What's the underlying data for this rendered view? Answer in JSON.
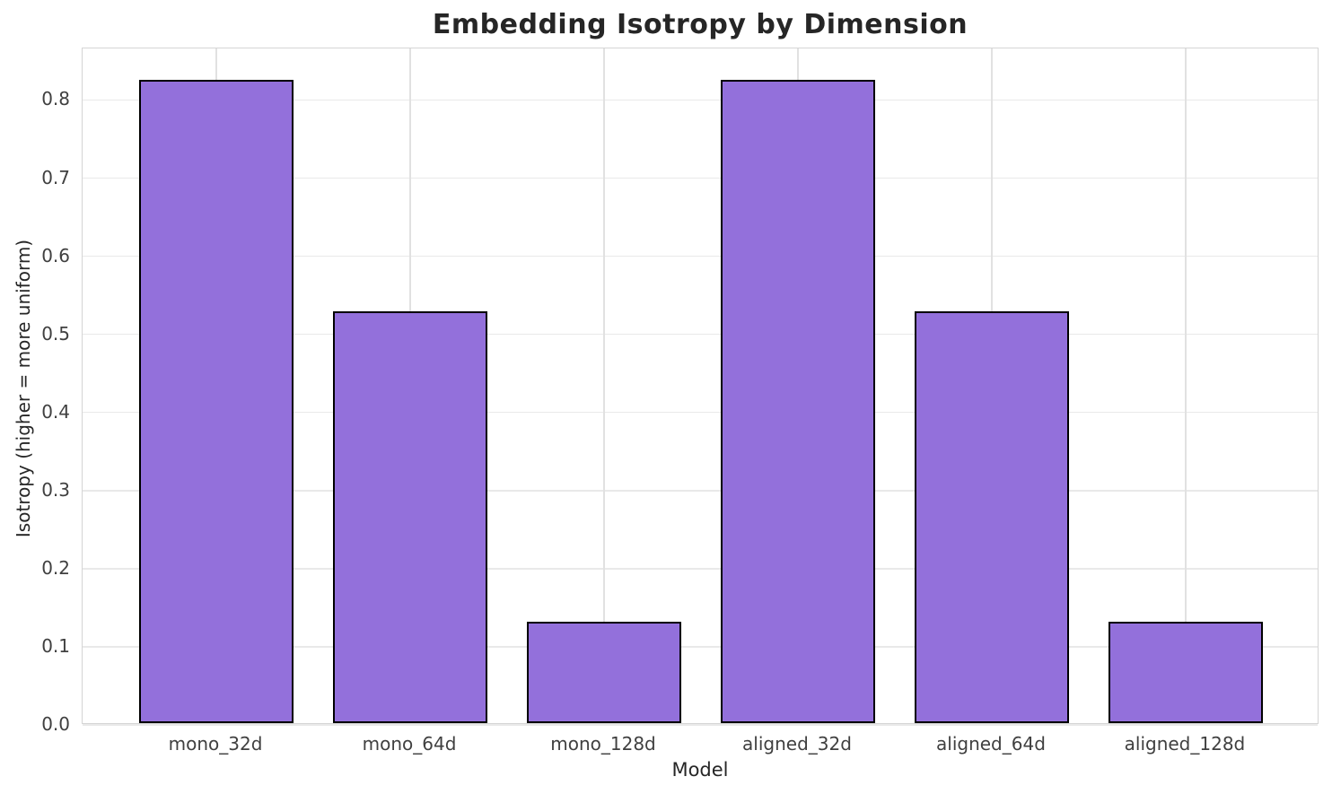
{
  "chart_data": {
    "type": "bar",
    "title": "Embedding Isotropy by Dimension",
    "xlabel": "Model",
    "ylabel": "Isotropy (higher = more uniform)",
    "categories": [
      "mono_32d",
      "mono_64d",
      "mono_128d",
      "aligned_32d",
      "aligned_64d",
      "aligned_128d"
    ],
    "values": [
      0.823,
      0.527,
      0.13,
      0.823,
      0.527,
      0.13
    ],
    "ytick_labels": [
      "0.0",
      "0.1",
      "0.2",
      "0.3",
      "0.4",
      "0.5",
      "0.6",
      "0.7",
      "0.8"
    ],
    "ytick_values": [
      0.0,
      0.1,
      0.2,
      0.3,
      0.4,
      0.5,
      0.6,
      0.7,
      0.8
    ],
    "ylim": [
      0,
      0.866
    ],
    "grid": "on",
    "legend": "none",
    "colors": {
      "bar_fill": "#9370DB",
      "bar_edge": "#000000",
      "grid_h": "#e9e9e9",
      "grid_v": "#e1e1e1",
      "spine": "#d5d5d5",
      "title_text": "#262626",
      "tick_text": "#404040"
    }
  }
}
